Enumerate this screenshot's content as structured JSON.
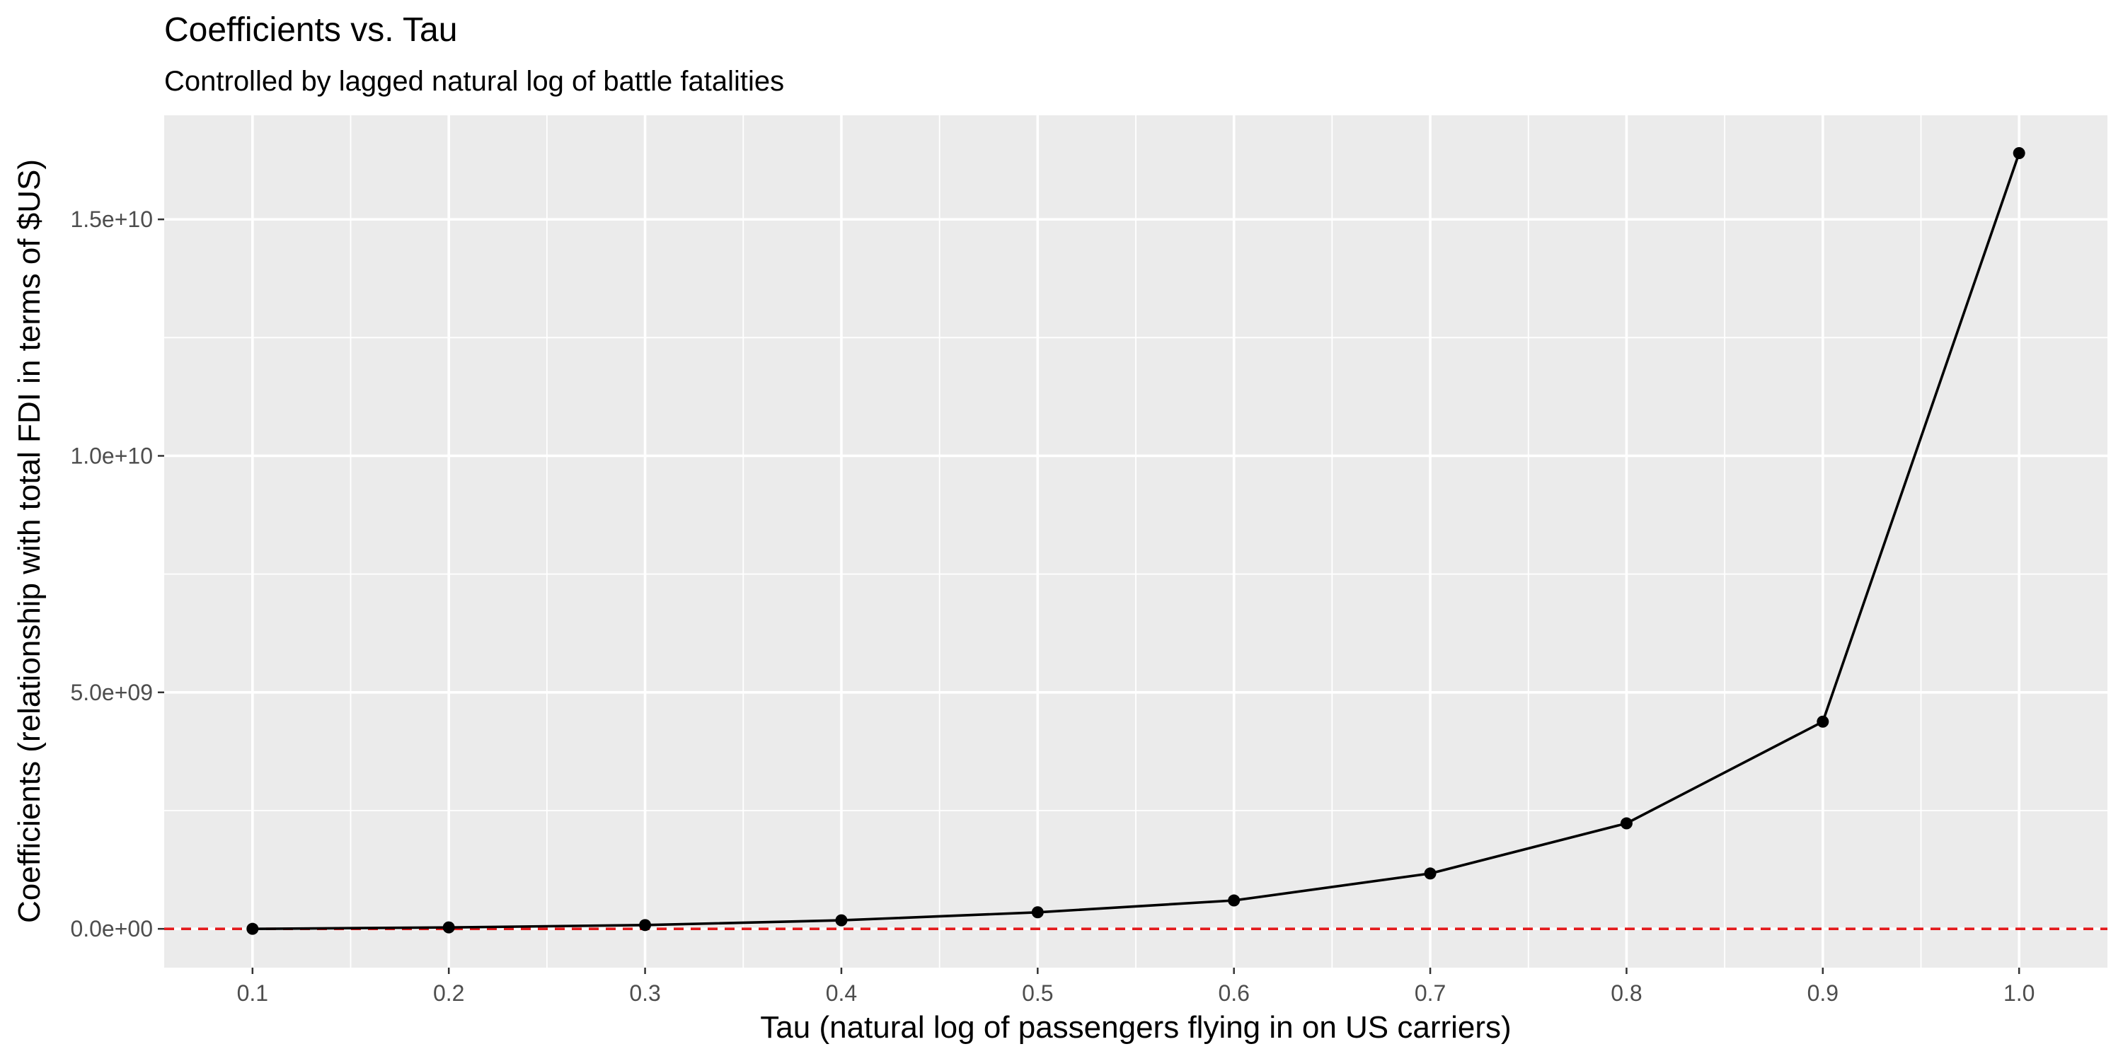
{
  "chart_data": {
    "type": "line",
    "title": "Coefficients vs. Tau",
    "subtitle": "Controlled by lagged natural log of battle fatalities",
    "xlabel": "Tau (natural log of passengers flying in on US carriers)",
    "ylabel": "Coefficients (relationship with total FDI in terms of $US)",
    "x": [
      0.1,
      0.2,
      0.3,
      0.4,
      0.5,
      0.6,
      0.7,
      0.8,
      0.9,
      1.0
    ],
    "series": [
      {
        "values": [
          0,
          30000000,
          80000000,
          180000000,
          350000000,
          600000000,
          1170000000,
          2230000000,
          4380000000,
          16400000000
        ]
      }
    ],
    "xlim": [
      0.055,
      1.045
    ],
    "ylim": [
      -820000000,
      17200000000
    ],
    "x_ticks": [
      0.1,
      0.2,
      0.3,
      0.4,
      0.5,
      0.6,
      0.7,
      0.8,
      0.9,
      1.0
    ],
    "x_tick_labels": [
      "0.1",
      "0.2",
      "0.3",
      "0.4",
      "0.5",
      "0.6",
      "0.7",
      "0.8",
      "0.9",
      "1.0"
    ],
    "y_ticks": [
      0,
      5000000000,
      10000000000,
      15000000000
    ],
    "y_tick_labels": [
      "0.0e+00",
      "5.0e+09",
      "1.0e+10",
      "1.5e+10"
    ],
    "reference_line": {
      "y": 0,
      "color": "#e41a1c",
      "style": "dashed"
    },
    "grid": true,
    "line_color": "#000000",
    "panel_color": "#ebebeb",
    "legend": "none"
  }
}
